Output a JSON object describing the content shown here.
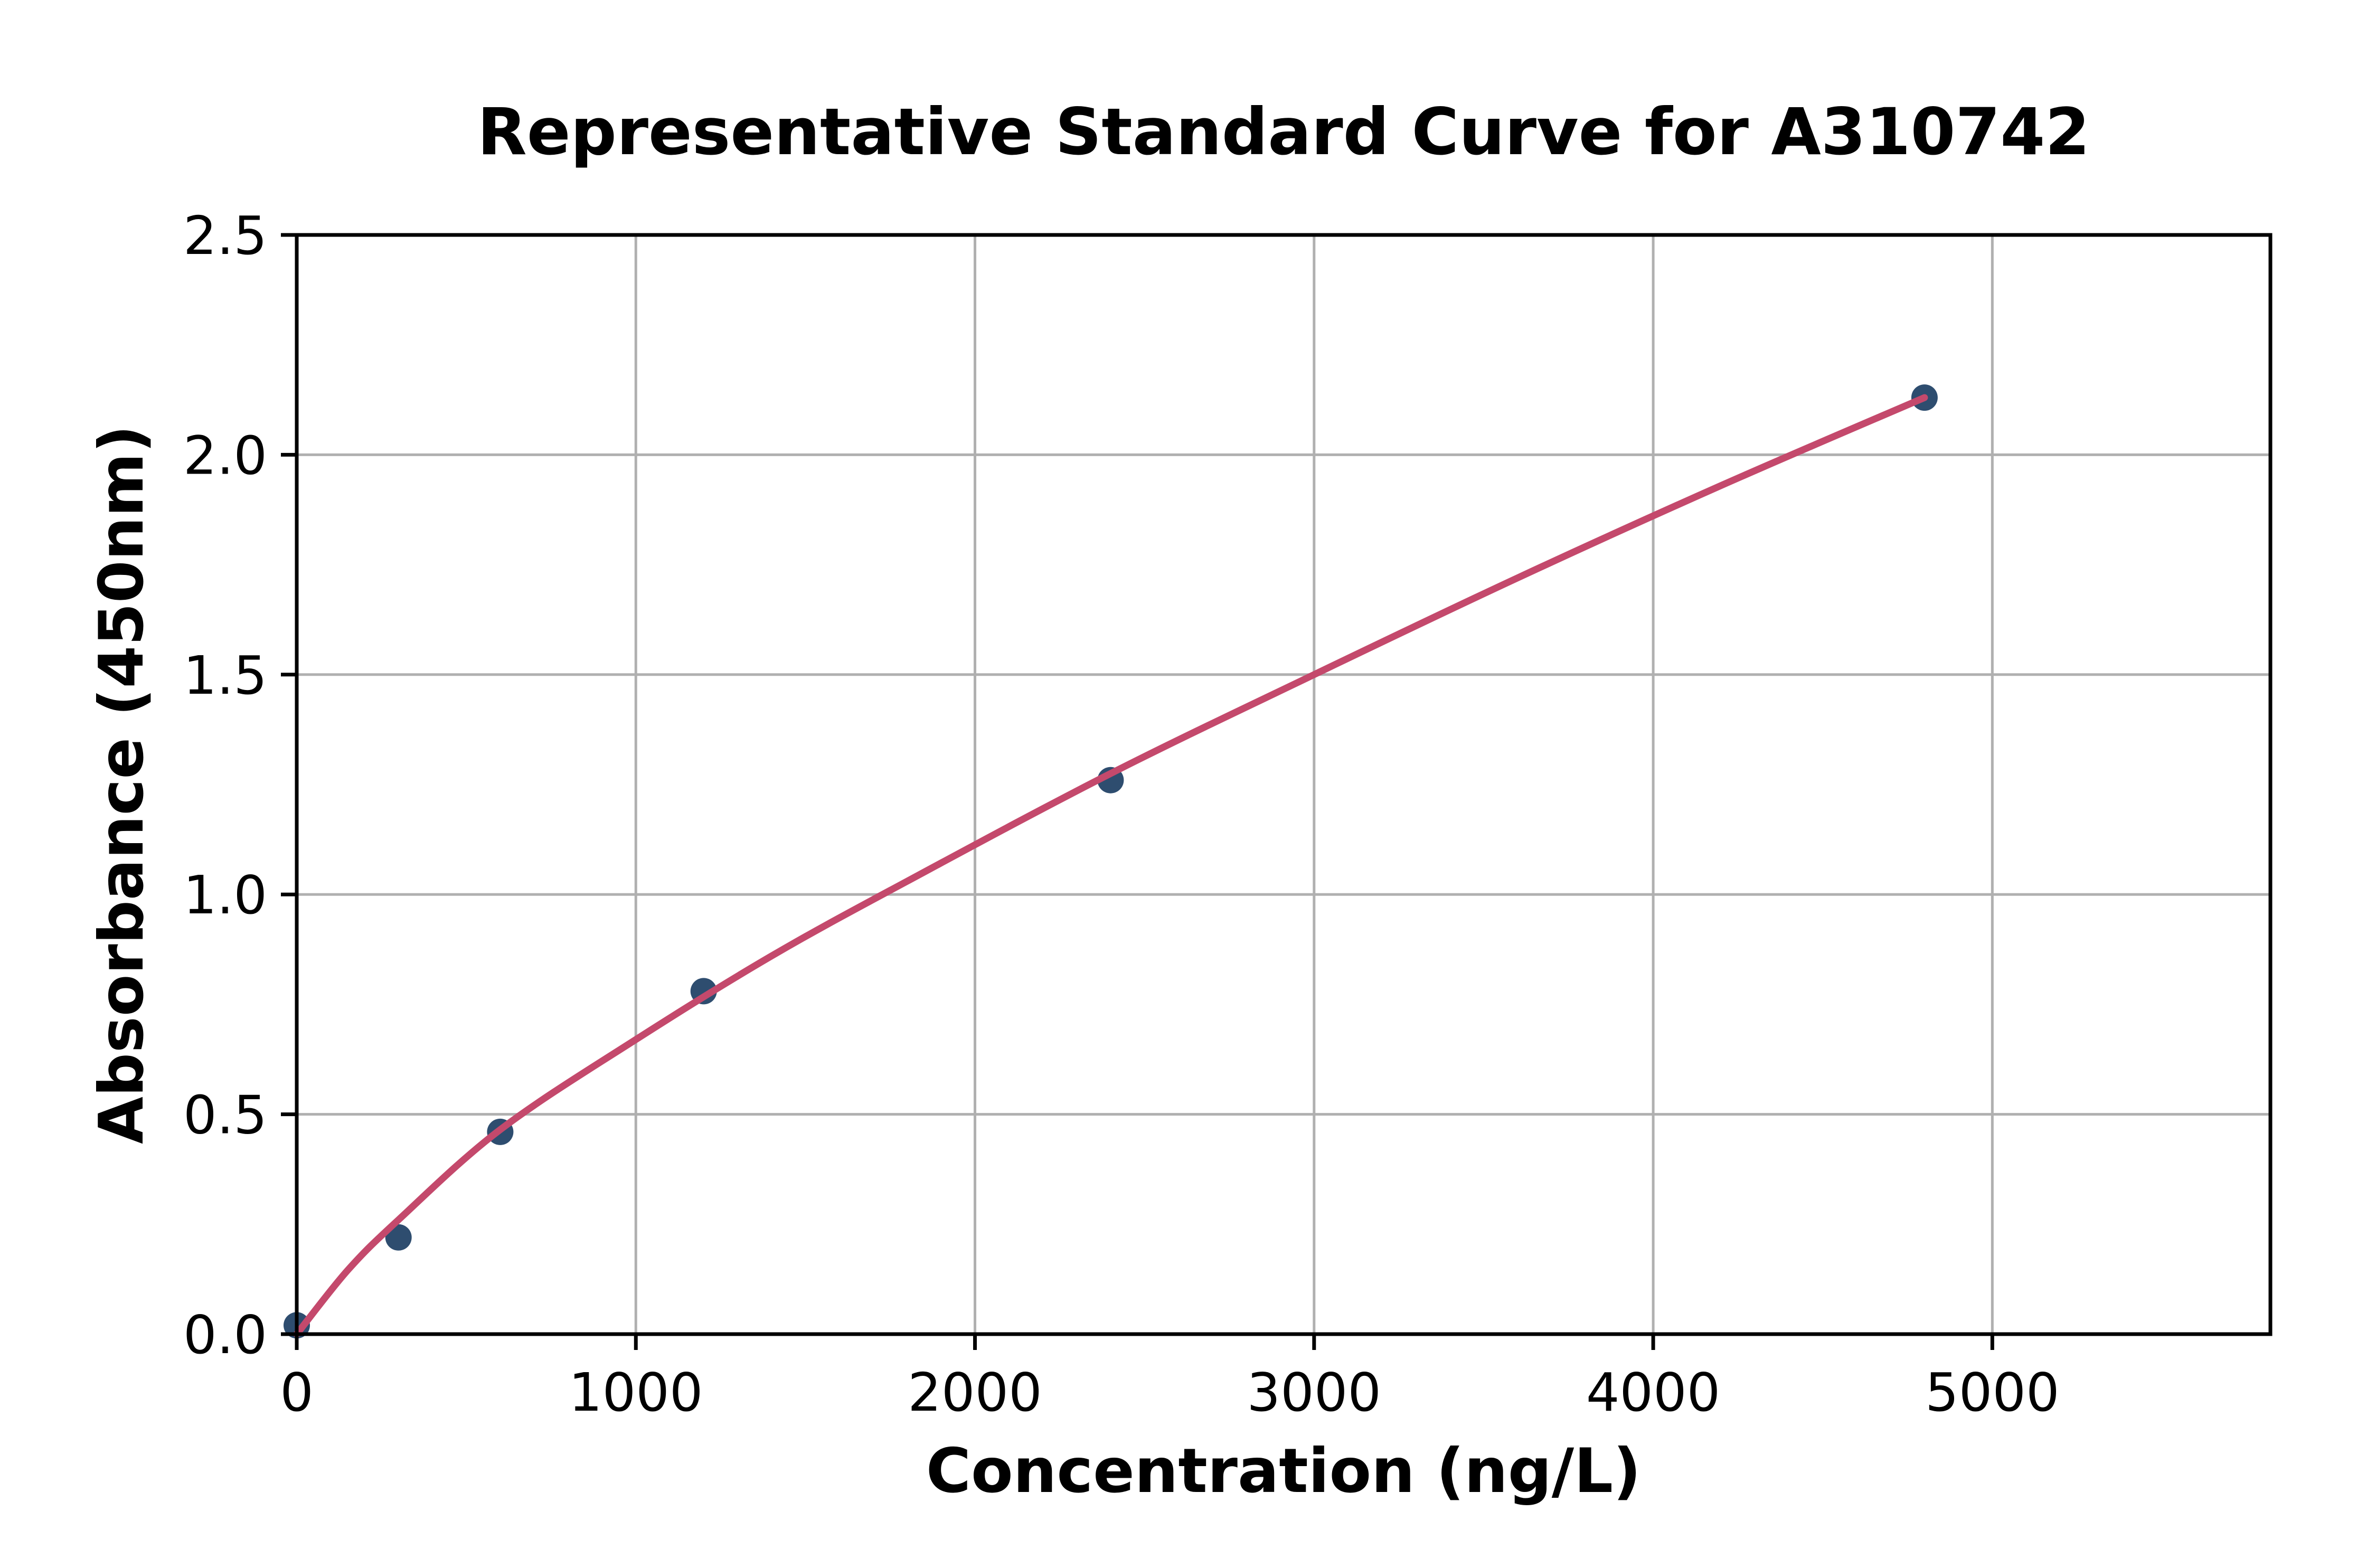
{
  "chart_data": {
    "type": "scatter",
    "title": "Representative Standard Curve for A310742",
    "xlabel": "Concentration (ng/L)",
    "ylabel": "Absorbance (450nm)",
    "xlim": [
      0,
      5820
    ],
    "ylim": [
      0,
      2.5
    ],
    "x_ticks": [
      0,
      1000,
      2000,
      3000,
      4000,
      5000
    ],
    "y_ticks": [
      0.0,
      0.5,
      1.0,
      1.5,
      2.0,
      2.5
    ],
    "grid": true,
    "legend_position": "none",
    "series": [
      {
        "name": "standard-points",
        "type": "scatter",
        "color": "#2E4D6F",
        "points": [
          [
            0,
            0.02
          ],
          [
            300,
            0.22
          ],
          [
            600,
            0.46
          ],
          [
            1200,
            0.78
          ],
          [
            2400,
            1.26
          ],
          [
            4800,
            2.13
          ]
        ]
      },
      {
        "name": "fit-curve",
        "type": "line",
        "color": "#C4496C",
        "points": [
          [
            0,
            0.0
          ],
          [
            150,
            0.145
          ],
          [
            300,
            0.26
          ],
          [
            600,
            0.465
          ],
          [
            1000,
            0.67
          ],
          [
            1400,
            0.86
          ],
          [
            1800,
            1.03
          ],
          [
            2400,
            1.275
          ],
          [
            3000,
            1.5
          ],
          [
            3600,
            1.72
          ],
          [
            4200,
            1.93
          ],
          [
            4800,
            2.13
          ]
        ]
      }
    ],
    "colors": {
      "grid": "#B0B0B0",
      "axis": "#000000",
      "text": "#000000",
      "background": "#FFFFFF"
    }
  }
}
